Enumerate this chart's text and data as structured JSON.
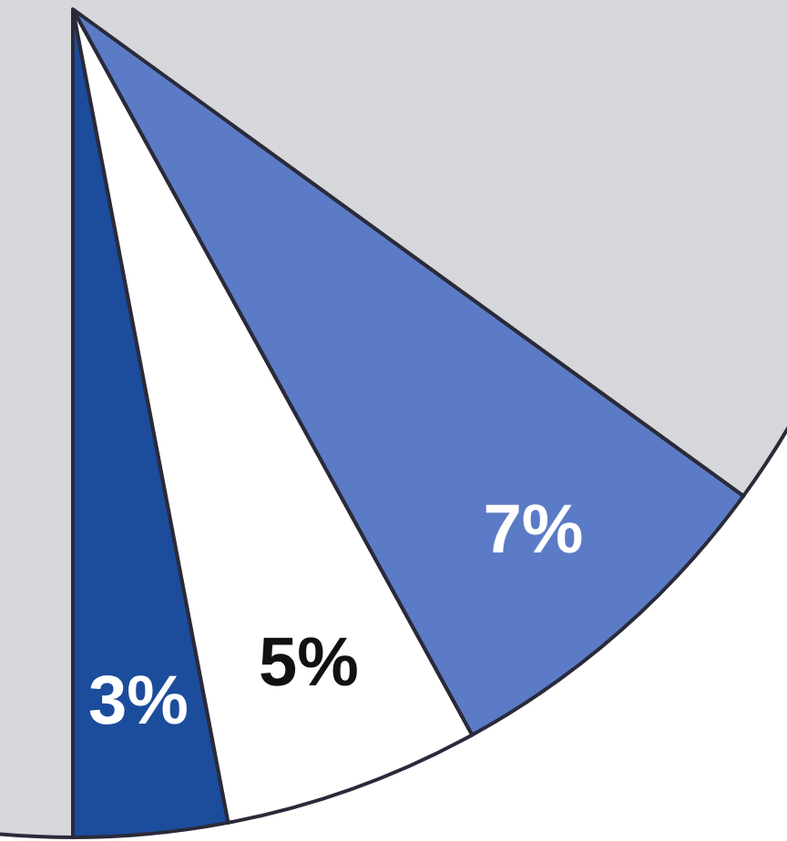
{
  "chart_data": {
    "type": "pie",
    "categories": [
      null,
      null,
      null,
      null
    ],
    "values": [
      3,
      5,
      7,
      85
    ],
    "colors": [
      "#1c4c9c",
      "#ffffff",
      "#5b7bc6",
      "#d5d7da"
    ],
    "value_labels": [
      "3%",
      "5%",
      "7%",
      null
    ]
  }
}
